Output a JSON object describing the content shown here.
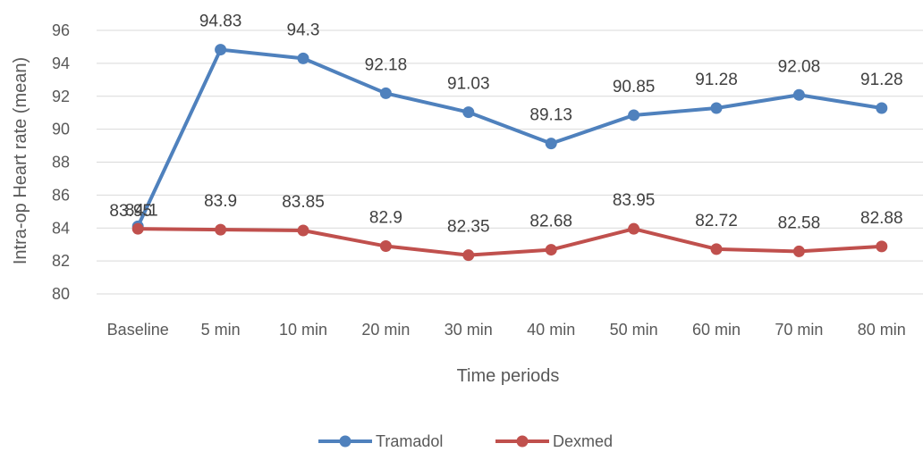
{
  "chart_data": {
    "type": "line",
    "title": "",
    "xlabel": "Time periods",
    "ylabel": "Intra-op Heart rate (mean)",
    "categories": [
      "Baseline",
      "5 min",
      "10 min",
      "20 min",
      "30 min",
      "40 min",
      "50 min",
      "60 min",
      "70 min",
      "80 min"
    ],
    "ylim": [
      80,
      96
    ],
    "yticks": [
      80,
      82,
      84,
      86,
      88,
      90,
      92,
      94,
      96
    ],
    "grid": true,
    "legend_position": "bottom",
    "series": [
      {
        "name": "Tramadol",
        "color": "#4F81BD",
        "values": [
          84.1,
          94.83,
          94.3,
          92.18,
          91.03,
          89.13,
          90.85,
          91.28,
          92.08,
          91.28
        ],
        "labels": [
          "84.1",
          "94.83",
          "94.3",
          "92.18",
          "91.03",
          "89.13",
          "90.85",
          "91.28",
          "92.08",
          "91.28"
        ]
      },
      {
        "name": "Dexmed",
        "color": "#C0504D",
        "values": [
          83.95,
          83.9,
          83.85,
          82.9,
          82.35,
          82.68,
          83.95,
          82.72,
          82.58,
          82.88
        ],
        "labels": [
          "83.95",
          "83.9",
          "83.85",
          "82.9",
          "82.35",
          "82.68",
          "83.95",
          "82.72",
          "82.58",
          "82.88"
        ]
      }
    ]
  }
}
